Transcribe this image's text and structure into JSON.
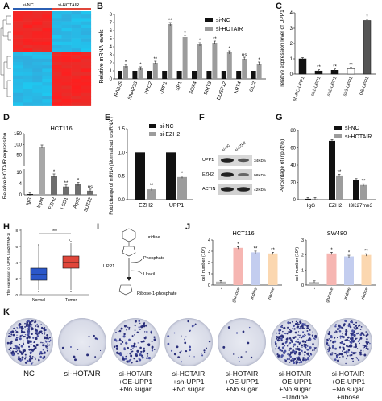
{
  "panel_labels": [
    "A",
    "B",
    "C",
    "D",
    "E",
    "F",
    "G",
    "H",
    "I",
    "J",
    "K"
  ],
  "A": {
    "group_labels": [
      "si-NC",
      "si-HOTAIR"
    ]
  },
  "B": {
    "ylabel": "Relative mRNA levels",
    "legend": [
      "si-NC",
      "si-HOTAIR"
    ],
    "categories": [
      "RAB35",
      "SNAP23",
      "PRC2",
      "UPP1",
      "SP1",
      "SOX4",
      "SIRT3",
      "DUSP12",
      "KRT4",
      "GLI2"
    ],
    "sig": [
      "*",
      "*",
      "**",
      "**",
      "*",
      "*",
      "**",
      "*",
      "ns",
      "*"
    ],
    "yticks": [
      "0",
      "1",
      "2",
      "3",
      "4",
      "5",
      "6",
      "7",
      "8"
    ]
  },
  "C": {
    "ylabel": "relative expression level of UPP1",
    "categories": [
      "sh-NC-UPP1",
      "sh1-UPP1",
      "sh2-UPP1",
      "sh3-UPP1",
      "OE-UPP1"
    ],
    "sig": [
      "",
      "**",
      "**",
      "**",
      "*"
    ],
    "yticks": [
      "0",
      "1",
      "2",
      "3",
      "4"
    ]
  },
  "D": {
    "title": "HCT116",
    "ylabel": "Relative HOTAIR expression",
    "categories": [
      "IgG",
      "Input",
      "EZH2",
      "LSD1",
      "Ago2",
      "SUZ12"
    ],
    "sig": [
      "",
      "",
      "*",
      "**",
      "*",
      "ns"
    ],
    "yticks": [
      "0",
      "50",
      "100",
      "150"
    ],
    "break_ticks": [
      "10",
      "4"
    ]
  },
  "E": {
    "ylabel": "Fold change of mRNA (Normalized to siRNA )",
    "legend": [
      "si-NC",
      "si-EZH2"
    ],
    "categories": [
      "EZH2",
      "UPP1"
    ],
    "sig": [
      "**",
      "*"
    ],
    "yticks": [
      "0.0",
      "0.5",
      "1.0",
      "1.5"
    ]
  },
  "F": {
    "col_labels": [
      "si-NC",
      "si-EZH2"
    ],
    "rows": [
      {
        "name": "UPP1",
        "kda": "34KDa"
      },
      {
        "name": "EZH2",
        "kda": "98KDa"
      },
      {
        "name": "ACTIN",
        "kda": "42KDa"
      }
    ]
  },
  "G": {
    "ylabel": "Percentage of input(%)",
    "legend": [
      "si-NC",
      "si-HOTAIR"
    ],
    "categories": [
      "IgG",
      "EZH2",
      "H3K27me3"
    ],
    "sig": [
      "",
      "**",
      "**"
    ],
    "yticks": [
      "0",
      "20",
      "40",
      "60",
      "80"
    ]
  },
  "H": {
    "ylabel": "The expression of UPP1 Log2(TPM+1)",
    "categories": [
      "Normal",
      "Tumor"
    ],
    "sig": "***",
    "colors": [
      "#2b57c9",
      "#e0463a"
    ],
    "yticks": [
      "0",
      "2",
      "4",
      "6",
      "8"
    ]
  },
  "I": {
    "labels": [
      "uridine",
      "UPP1",
      "Phosphate",
      "Uracil",
      "Ribose-1-phosphate"
    ]
  },
  "J": {
    "ylabel": "cell number (10⁴)",
    "categories": [
      "-",
      "glucose",
      "uridine",
      "ribose"
    ],
    "charts": [
      {
        "title": "HCT116",
        "sig": [
          "",
          "*",
          "**",
          "**"
        ],
        "yticks": [
          "0",
          "1",
          "2",
          "3",
          "4"
        ]
      },
      {
        "title": "SW480",
        "sig": [
          "",
          "*",
          "*",
          "**"
        ],
        "yticks": [
          "0",
          "1",
          "2",
          "3"
        ]
      }
    ],
    "colors": [
      "#b7b7b7",
      "#f6b6b2",
      "#c3cdef",
      "#fbd7b0"
    ]
  },
  "K": {
    "labels": [
      [
        "NC"
      ],
      [
        "si-HOTAIR"
      ],
      [
        "si-HOTAIR",
        "+OE-UPP1",
        "+No sugar"
      ],
      [
        "si-HOTAIR",
        "+sh-UPP1",
        "+No sugar"
      ],
      [
        "si-HOTAIR",
        "+OE-UPP1",
        "+No sugar"
      ],
      [
        "si-HOTAIR",
        "+OE-UPP1",
        "+No sugar",
        "+Undine"
      ],
      [
        "si-HOTAIR",
        "+OE-UPP1",
        "+No sugar",
        "+ribose"
      ]
    ],
    "density": [
      0.95,
      0.05,
      0.45,
      0.12,
      0.05,
      0.9,
      0.75
    ]
  },
  "chart_data": [
    {
      "type": "bar",
      "categories": [
        "RAB35",
        "SNAP23",
        "PRC2",
        "UPP1",
        "SP1",
        "SOX4",
        "SIRT3",
        "DUSP12",
        "KRT4",
        "GLI2"
      ],
      "series": [
        {
          "name": "si-NC",
          "values": [
            1,
            1,
            1,
            1,
            1,
            1,
            1,
            1,
            1,
            1
          ]
        },
        {
          "name": "si-HOTAIR",
          "values": [
            1.6,
            1.3,
            2.0,
            6.8,
            5.2,
            4.3,
            4.5,
            3.3,
            2.5,
            1.9
          ]
        }
      ],
      "xlabel": "",
      "ylabel": "Relative mRNA levels",
      "ylim": [
        0,
        8
      ]
    },
    {
      "type": "bar",
      "categories": [
        "sh-NC-UPP1",
        "sh1-UPP1",
        "sh2-UPP1",
        "sh3-UPP1",
        "OE-UPP1"
      ],
      "values": [
        1.0,
        0.2,
        0.25,
        0.35,
        3.5
      ],
      "ylabel": "relative expression level of UPP1",
      "ylim": [
        0,
        4
      ]
    },
    {
      "type": "bar",
      "title": "HCT116",
      "categories": [
        "IgG",
        "Input",
        "EZH2",
        "LSD1",
        "Ago2",
        "SUZ12"
      ],
      "values": [
        0.3,
        90,
        7.5,
        3.2,
        4.2,
        1.6
      ],
      "ylabel": "Relative HOTAIR expression"
    },
    {
      "type": "bar",
      "categories": [
        "EZH2",
        "UPP1"
      ],
      "series": [
        {
          "name": "si-NC",
          "values": [
            1.0,
            1.0
          ]
        },
        {
          "name": "si-EZH2",
          "values": [
            0.22,
            0.48
          ]
        }
      ],
      "ylabel": "Fold change of mRNA (Normalized to siRNA )",
      "ylim": [
        0,
        1.5
      ]
    },
    {
      "type": "bar",
      "categories": [
        "IgG",
        "EZH2",
        "H3K27me3"
      ],
      "series": [
        {
          "name": "si-NC",
          "values": [
            1,
            68,
            23
          ]
        },
        {
          "name": "si-HOTAIR",
          "values": [
            1,
            28,
            17
          ]
        }
      ],
      "ylabel": "Percentage of input(%)",
      "ylim": [
        0,
        80
      ]
    },
    {
      "type": "bar",
      "title": "HCT116",
      "categories": [
        "-",
        "glucose",
        "uridine",
        "ribose"
      ],
      "values": [
        0.3,
        3.3,
        2.9,
        2.8
      ],
      "ylabel": "cell number (10⁴)",
      "ylim": [
        0,
        4
      ]
    },
    {
      "type": "bar",
      "title": "SW480",
      "categories": [
        "-",
        "glucose",
        "uridine",
        "ribose"
      ],
      "values": [
        0.2,
        2.1,
        1.9,
        2.0
      ],
      "ylabel": "cell number (10⁴)",
      "ylim": [
        0,
        3
      ]
    }
  ]
}
